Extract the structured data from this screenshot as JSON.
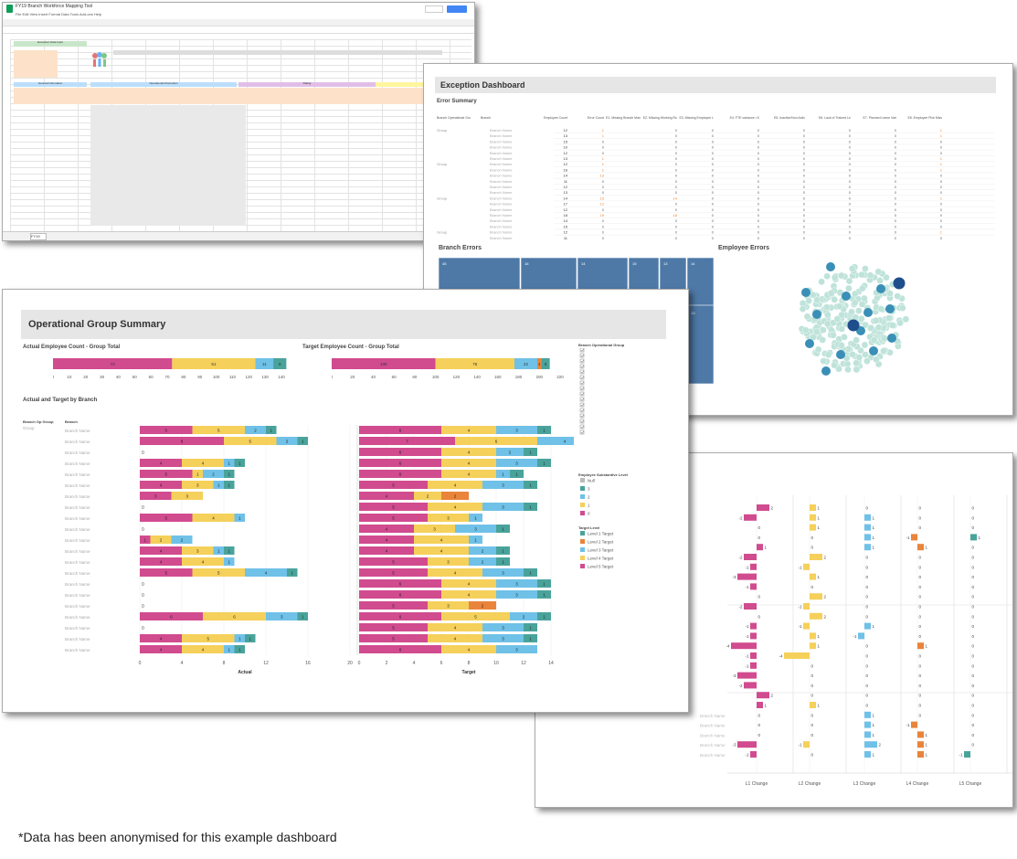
{
  "sheet": {
    "title": "FY19 Branch Workforce Mapping Tool",
    "tab_label": "FY19",
    "comments_label": "Comments",
    "share_label": "Share",
    "header_left": "Exception Data Input",
    "section_labels": [
      "General Information",
      "Operational Information",
      "Rating"
    ]
  },
  "exception_dashboard": {
    "title": "Exception Dashboard",
    "error_summary_title": "Error Summary",
    "columns": [
      "Branch Operational Group",
      "Branch",
      "Employee Count",
      "Error Count",
      "E1. Missing Branch Manager",
      "E2. Missing Working Roster",
      "E3. Missing Employee Level",
      "E4. FTE variance >X",
      "E5. Inactive/Non Active Details",
      "E6. Lack of Trained Level Number Details",
      "E7. Planned Leave Variance from Actual",
      "E8. Employee Pick Missing Metadata"
    ],
    "group_label": "Group",
    "branch_label": "Branch Name",
    "rows": [
      [
        12,
        1,
        0,
        0,
        0,
        0,
        0,
        0,
        1
      ],
      [
        13,
        1,
        0,
        0,
        0,
        0,
        0,
        0,
        1
      ],
      [
        15,
        0,
        0,
        0,
        0,
        0,
        0,
        0,
        0
      ],
      [
        10,
        0,
        0,
        0,
        0,
        0,
        0,
        0,
        0
      ],
      [
        12,
        0,
        0,
        0,
        0,
        0,
        0,
        0,
        0
      ],
      [
        13,
        1,
        0,
        0,
        0,
        0,
        0,
        0,
        1
      ],
      [
        12,
        1,
        0,
        0,
        0,
        0,
        0,
        0,
        1
      ],
      [
        16,
        1,
        0,
        0,
        0,
        0,
        0,
        0,
        1
      ],
      [
        14,
        13,
        0,
        0,
        0,
        0,
        0,
        0,
        0
      ],
      [
        11,
        0,
        0,
        0,
        0,
        0,
        0,
        0,
        0
      ],
      [
        12,
        0,
        0,
        0,
        0,
        0,
        0,
        0,
        0
      ],
      [
        13,
        0,
        0,
        0,
        0,
        0,
        0,
        0,
        0
      ],
      [
        14,
        13,
        14,
        0,
        0,
        0,
        0,
        0,
        1
      ],
      [
        17,
        12,
        0,
        0,
        0,
        0,
        0,
        0,
        0
      ],
      [
        12,
        0,
        0,
        0,
        0,
        0,
        0,
        0,
        0
      ],
      [
        18,
        15,
        18,
        0,
        0,
        0,
        0,
        0,
        0
      ],
      [
        14,
        0,
        0,
        0,
        0,
        0,
        0,
        0,
        0
      ],
      [
        15,
        0,
        0,
        0,
        0,
        0,
        0,
        0,
        0
      ],
      [
        12,
        0,
        0,
        0,
        0,
        0,
        0,
        0,
        1
      ],
      [
        11,
        0,
        0,
        0,
        0,
        0,
        0,
        0,
        0
      ]
    ],
    "branch_errors_title": "Branch Errors",
    "treemap_values": [
      "45",
      "16",
      "14",
      "15",
      "13",
      "14",
      "13"
    ],
    "employee_errors_title": "Employee Errors",
    "colors": {
      "treemap": "#4e79a7",
      "bubble_light": "#bfe3da",
      "bubble_mid": "#3a8fb7",
      "bubble_dark": "#1f4e8c"
    }
  },
  "operational_summary": {
    "title": "Operational Group Summary",
    "actual_title": "Actual Employee Count - Group Total",
    "target_title": "Target Employee Count - Group Total",
    "actual_total": {
      "segments": [
        {
          "value": 73,
          "color": "#d14b8f"
        },
        {
          "value": 51,
          "color": "#f5d05a"
        },
        {
          "value": 11,
          "color": "#6fc1e8"
        },
        {
          "value": 8,
          "color": "#49a39b"
        }
      ],
      "axis": [
        0,
        10,
        20,
        30,
        40,
        50,
        60,
        70,
        80,
        90,
        100,
        110,
        120,
        130,
        140
      ],
      "max": 140
    },
    "target_total": {
      "segments": [
        {
          "value": 100,
          "color": "#d14b8f"
        },
        {
          "value": 76,
          "color": "#f5d05a"
        },
        {
          "value": 22,
          "color": "#6fc1e8"
        },
        {
          "value": 4,
          "color": "#e9843a"
        },
        {
          "value": 8,
          "color": "#49a39b"
        }
      ],
      "axis": [
        0,
        20,
        40,
        60,
        80,
        100,
        120,
        140,
        160,
        180,
        200,
        220
      ],
      "max": 220
    },
    "by_branch_title": "Actual and Target by Branch",
    "col_group": "Branch Op Group",
    "col_branch": "Branch",
    "group_label": "Group",
    "branch_label": "Branch Name",
    "branch_count": 21,
    "actual_rows": [
      [
        5,
        5,
        2,
        1
      ],
      [
        8,
        5,
        2,
        1
      ],
      [
        0
      ],
      [
        4,
        4,
        1,
        1
      ],
      [
        5,
        1,
        2,
        1
      ],
      [
        4,
        3,
        1,
        1
      ],
      [
        3,
        3
      ],
      [
        0
      ],
      [
        5,
        4,
        1
      ],
      [
        0
      ],
      [
        1,
        2,
        2
      ],
      [
        4,
        3,
        1,
        1
      ],
      [
        4,
        4,
        1
      ],
      [
        5,
        5,
        4,
        1
      ],
      [
        0
      ],
      [
        0
      ],
      [
        0
      ],
      [
        6,
        6,
        3,
        1
      ],
      [
        0
      ],
      [
        4,
        5,
        1,
        1
      ],
      [
        4,
        4,
        1,
        1
      ]
    ],
    "target_rows": [
      [
        6,
        4,
        3,
        1
      ],
      [
        7,
        6,
        4,
        1
      ],
      [
        6,
        4,
        2,
        1
      ],
      [
        6,
        4,
        3,
        1
      ],
      [
        6,
        4,
        1,
        1
      ],
      [
        5,
        4,
        3,
        1
      ],
      [
        4,
        2,
        2
      ],
      [
        5,
        4,
        3,
        1
      ],
      [
        5,
        3,
        1
      ],
      [
        4,
        3,
        3,
        1
      ],
      [
        4,
        4,
        1
      ],
      [
        4,
        4,
        2,
        1
      ],
      [
        5,
        3,
        2,
        1
      ],
      [
        5,
        4,
        3,
        1
      ],
      [
        6,
        4,
        3,
        1
      ],
      [
        6,
        4,
        3,
        1
      ],
      [
        5,
        3,
        2
      ],
      [
        6,
        5,
        2,
        1
      ],
      [
        5,
        4,
        3,
        1
      ],
      [
        5,
        4,
        3,
        1
      ],
      [
        6,
        4,
        3
      ]
    ],
    "actual_axis": [
      0,
      4,
      8,
      12,
      16,
      20
    ],
    "target_axis": [
      0,
      2,
      4,
      6,
      8,
      10,
      12,
      14
    ],
    "actual_label": "Actual",
    "target_label": "Target",
    "legend_branch_title": "Branch Operational Group",
    "legend_level_title": "Employee Substantive Level",
    "legend_level_items": [
      "Null",
      "3",
      "2",
      "1",
      "0"
    ],
    "legend_target_title": "Target Level",
    "legend_target_items": [
      "Level 1 Target",
      "Level 2 Target",
      "Level 3 Target",
      "Level 4 Target",
      "Level 5 Target"
    ],
    "level_colors": [
      "#bbbbbb",
      "#49a39b",
      "#6fc1e8",
      "#f5d05a",
      "#d14b8f"
    ],
    "target_colors": [
      "#49a39b",
      "#e9843a",
      "#6fc1e8",
      "#f5d05a",
      "#d14b8f"
    ]
  },
  "change_dashboard": {
    "columns": [
      "L1 Change",
      "L2 Change",
      "L3 Change",
      "L4 Change",
      "L5 Change"
    ],
    "colors": [
      "#d14b8f",
      "#f5d05a",
      "#6fc1e8",
      "#e9843a",
      "#49a39b"
    ],
    "branch_label": "Branch Name",
    "col1": [
      2,
      -2,
      0,
      0,
      1,
      -2,
      -1,
      -3,
      -1,
      0,
      -2,
      0,
      -1,
      -1,
      -4,
      -1,
      -1,
      -3,
      -2,
      2,
      1,
      0,
      0,
      0,
      -3,
      -1
    ],
    "col2": [
      1,
      1,
      1,
      0,
      0,
      2,
      -1,
      1,
      0,
      2,
      -1,
      2,
      -1,
      1,
      1,
      -4,
      0,
      0,
      0,
      0,
      1,
      0,
      0,
      0,
      -1,
      0
    ],
    "col3": [
      0,
      1,
      1,
      1,
      1,
      0,
      0,
      0,
      0,
      0,
      0,
      0,
      1,
      -1,
      0,
      0,
      0,
      0,
      0,
      0,
      0,
      1,
      1,
      1,
      2,
      1
    ],
    "col4": [
      0,
      0,
      0,
      -1,
      1,
      0,
      0,
      0,
      0,
      0,
      0,
      0,
      0,
      0,
      1,
      0,
      0,
      0,
      0,
      0,
      0,
      0,
      -1,
      1,
      1,
      1
    ],
    "col5": [
      0,
      0,
      0,
      1,
      0,
      0,
      0,
      0,
      0,
      0,
      0,
      0,
      0,
      0,
      0,
      0,
      0,
      0,
      0,
      0,
      0,
      0,
      0,
      0,
      0,
      -1
    ]
  },
  "footnote": "*Data has been anonymised for this example dashboard"
}
